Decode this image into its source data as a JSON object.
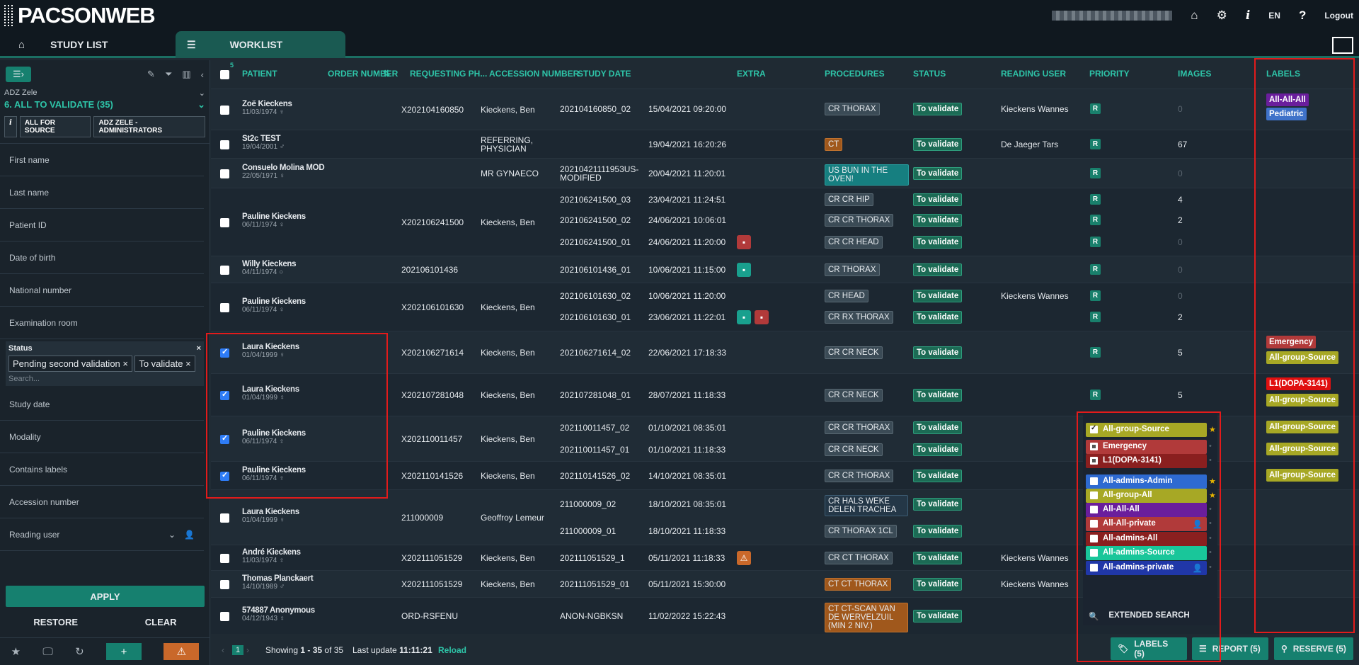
{
  "header": {
    "logo_prefix": "PACS",
    "logo_on": "ON",
    "logo_suffix": "WEB",
    "lang": "EN",
    "logout": "Logout",
    "home_icon": "⌂",
    "gear_icon": "⚙",
    "info_icon": "i",
    "help_icon": "?"
  },
  "tabs": {
    "study_list": "STUDY LIST",
    "worklist": "WORKLIST"
  },
  "sidebar": {
    "subtitle": "ADZ Zele",
    "title": "6. ALL TO VALIDATE (35)",
    "chip_info": "i",
    "chip_source": "ALL FOR SOURCE",
    "chip_admin": "ADZ ZELE - ADMINISTRATORS",
    "fields": [
      "First name",
      "Last name",
      "Patient ID",
      "Date of birth",
      "National number",
      "Examination room"
    ],
    "status_label": "Status",
    "status_close": "×",
    "status_values": [
      "Pending second validation ×",
      "To validate ×"
    ],
    "status_search": "Search...",
    "fields2": [
      "Study date",
      "Modality",
      "Contains labels",
      "Accession number",
      "Reading user"
    ],
    "apply": "APPLY",
    "restore": "RESTORE",
    "clear": "CLEAR"
  },
  "columns": {
    "count": "5",
    "patient": "PATIENT",
    "order": "ORDER NUMBER",
    "requesting": "REQUESTING PH...",
    "accession": "ACCESSION NUMBER",
    "date": "STUDY DATE",
    "extra": "EXTRA",
    "procedures": "PROCEDURES",
    "status": "STATUS",
    "reader": "READING USER",
    "priority": "PRIORITY",
    "images": "IMAGES",
    "labels": "LABELS"
  },
  "rows": [
    {
      "name": "Zoë Kieckens",
      "dob": "11/03/1974 ♀",
      "order": "X202104160850",
      "req": "Kieckens, Ben",
      "acc": [
        "202104160850_02"
      ],
      "date": [
        "15/04/2021 09:20:00"
      ],
      "proc": [
        "CR THORAX"
      ],
      "status": [
        "To validate"
      ],
      "reader": [
        "Kieckens Wannes"
      ],
      "prio": [
        "R"
      ],
      "images": [
        "0"
      ],
      "labels": [
        "All-All-All",
        "Pediatric"
      ]
    },
    {
      "name": "St2c TEST",
      "dob": "19/04/2001 ♂",
      "order": "",
      "req": "REFERRING, PHYSICIAN",
      "acc": [
        ""
      ],
      "date": [
        "19/04/2021 16:20:26"
      ],
      "proc": [
        "CT"
      ],
      "status": [
        "To validate"
      ],
      "reader": [
        "De Jaeger Tars"
      ],
      "prio": [
        "R"
      ],
      "images": [
        "67"
      ]
    },
    {
      "name": "Consuelo Molina MOD",
      "dob": "22/05/1971 ♀",
      "order": "",
      "req": "MR GYNAECO",
      "acc": [
        "20210421111953US-MODIFIED"
      ],
      "date": [
        "20/04/2021 11:20:01"
      ],
      "proc": [
        "US BUN IN THE OVEN!"
      ],
      "status": [
        "To validate"
      ],
      "prio": [
        "R"
      ],
      "images": [
        "0"
      ]
    },
    {
      "name": "Pauline Kieckens",
      "dob": "06/11/1974 ♀",
      "order": "X202106241500",
      "req": "Kieckens, Ben",
      "acc": [
        "202106241500_03",
        "202106241500_02",
        "202106241500_01"
      ],
      "date": [
        "23/04/2021 11:24:51",
        "24/06/2021 10:06:01",
        "24/06/2021 11:20:00"
      ],
      "proc": [
        "CR CR HIP",
        "CR CR THORAX",
        "CR CR HEAD"
      ],
      "status": [
        "To validate",
        "To validate",
        "To validate"
      ],
      "prio": [
        "R",
        "R",
        "R"
      ],
      "images": [
        "4",
        "2",
        "0"
      ]
    },
    {
      "name": "Willy Kieckens",
      "dob": "04/11/1974 ○",
      "order": "202106101436",
      "req": "",
      "acc": [
        "202106101436_01"
      ],
      "date": [
        "10/06/2021 11:15:00"
      ],
      "proc": [
        "CR THORAX"
      ],
      "status": [
        "To validate"
      ],
      "prio": [
        "R"
      ],
      "images": [
        "0"
      ]
    },
    {
      "name": "Pauline Kieckens",
      "dob": "06/11/1974 ♀",
      "order": "X202106101630",
      "req": "Kieckens, Ben",
      "acc": [
        "202106101630_02",
        "202106101630_01"
      ],
      "date": [
        "10/06/2021 11:20:00",
        "23/06/2021 11:22:01"
      ],
      "proc": [
        "CR HEAD",
        "CR RX THORAX"
      ],
      "status": [
        "To validate",
        "To validate"
      ],
      "reader": [
        "Kieckens Wannes",
        ""
      ],
      "prio": [
        "R",
        "R"
      ],
      "images": [
        "0",
        "2"
      ]
    },
    {
      "name": "Laura Kieckens",
      "dob": "01/04/1999 ♀",
      "order": "X202106271614",
      "req": "Kieckens, Ben",
      "acc": [
        "202106271614_02"
      ],
      "date": [
        "22/06/2021 17:18:33"
      ],
      "proc": [
        "CR CR NECK"
      ],
      "status": [
        "To validate"
      ],
      "prio": [
        "R"
      ],
      "images": [
        "5"
      ],
      "labels": [
        "Emergency",
        "All-group-Source"
      ]
    },
    {
      "name": "Laura Kieckens",
      "dob": "01/04/1999 ♀",
      "order": "X202107281048",
      "req": "Kieckens, Ben",
      "acc": [
        "202107281048_01"
      ],
      "date": [
        "28/07/2021 11:18:33"
      ],
      "proc": [
        "CR CR NECK"
      ],
      "status": [
        "To validate"
      ],
      "prio": [
        "R"
      ],
      "images": [
        "5"
      ],
      "labels": [
        "L1(DOPA-3141)",
        "All-group-Source"
      ]
    },
    {
      "name": "Pauline Kieckens",
      "dob": "06/11/1974 ♀",
      "order": "X202110011457",
      "req": "Kieckens, Ben",
      "acc": [
        "202110011457_02",
        "202110011457_01"
      ],
      "date": [
        "01/10/2021 08:35:01",
        "01/10/2021 11:18:33"
      ],
      "proc": [
        "CR CR THORAX",
        "CR CR NECK"
      ],
      "status": [
        "To validate",
        "To validate"
      ],
      "labels": [
        "All-group-Source",
        "All-group-Source"
      ]
    },
    {
      "name": "Pauline Kieckens",
      "dob": "06/11/1974 ♀",
      "order": "X202110141526",
      "req": "Kieckens, Ben",
      "acc": [
        "202110141526_02"
      ],
      "date": [
        "14/10/2021 08:35:01"
      ],
      "proc": [
        "CR CR THORAX"
      ],
      "status": [
        "To validate"
      ],
      "labels": [
        "All-group-Source"
      ]
    },
    {
      "name": "Laura Kieckens",
      "dob": "01/04/1999 ♀",
      "order": "211000009",
      "req": "Geoffroy Lemeur",
      "acc": [
        "211000009_02",
        "211000009_01"
      ],
      "date": [
        "18/10/2021 08:35:01",
        "18/10/2021 11:18:33"
      ],
      "proc": [
        "CR HALS WEKE DELEN TRACHEA",
        "CR THORAX 1CL"
      ],
      "status": [
        "To validate",
        "To validate"
      ]
    },
    {
      "name": "André Kieckens",
      "dob": "11/03/1974 ♀",
      "order": "X202111051529",
      "req": "Kieckens, Ben",
      "acc": [
        "202111051529_1"
      ],
      "date": [
        "05/11/2021 11:18:33"
      ],
      "proc": [
        "CR CT THORAX"
      ],
      "status": [
        "To validate"
      ],
      "reader": [
        "Kieckens Wannes"
      ]
    },
    {
      "name": "Thomas Planckaert",
      "dob": "14/10/1989 ♂",
      "order": "X202111051529",
      "req": "Kieckens, Ben",
      "acc": [
        "202111051529_01"
      ],
      "date": [
        "05/11/2021 15:30:00"
      ],
      "proc": [
        "CT CT THORAX"
      ],
      "status": [
        "To validate"
      ],
      "reader": [
        "Kieckens Wannes"
      ]
    },
    {
      "name": "574887 Anonymous",
      "dob": "04/12/1943 ♀",
      "order": "ORD-RSFENU",
      "req": "",
      "acc": [
        "ANON-NGBKSN"
      ],
      "date": [
        "11/02/2022 15:22:43"
      ],
      "proc": [
        "CT CT-SCAN VAN DE WERVELZUIL (MIN 2 NIV.)"
      ],
      "status": [
        "To validate"
      ]
    }
  ],
  "dropdown": {
    "items": [
      "All-group-Source",
      "Emergency",
      "L1(DOPA-3141)",
      "All-admins-Admin",
      "All-group-All",
      "All-All-All",
      "All-All-private",
      "All-admins-All",
      "All-admins-Source",
      "All-admins-private"
    ],
    "search": "EXTENDED SEARCH"
  },
  "footer": {
    "page": "1",
    "showing_prefix": "Showing ",
    "showing_range": "1 - 35",
    "showing_of": " of 35",
    "last_update": "Last update ",
    "time": "11:11:21",
    "reload": "Reload",
    "labels_btn": "LABELS (5)",
    "report_btn": "REPORT (5)",
    "reserve_btn": "RESERVE (5)"
  },
  "colors": {
    "accent": "#16806f",
    "teal_text": "#2ec4a8",
    "purple": "#6a1e9c",
    "blue": "#3f72c9",
    "red": "#b13a3a",
    "bright_red": "#e01010",
    "olive": "#a7a825"
  }
}
